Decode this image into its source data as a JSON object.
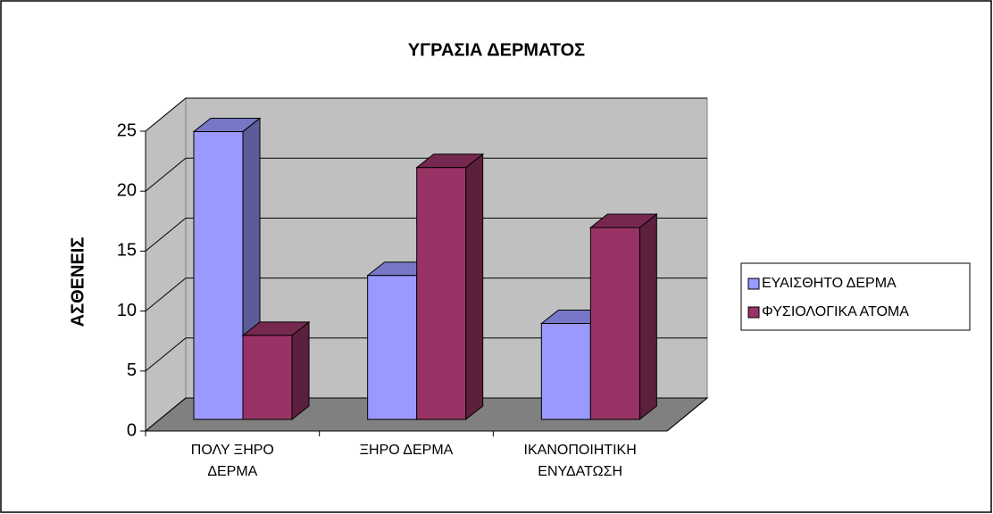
{
  "chart_data": {
    "type": "bar3d",
    "title": "ΥΓΡΑΣΙΑ ΔΕΡΜΑΤΟΣ",
    "y_label": "ΑΣΘΕΝΕΙΣ",
    "categories": [
      "ΠΟΛΥ ΞΗΡΟ ΔΕΡΜΑ",
      "ΞΗΡΟ ΔΕΡΜΑ",
      "ΙΚΑΝΟΠΟΙΗΤΙΚΗ ΕΝΥΔΑΤΩΣΗ"
    ],
    "series": [
      {
        "name": "ΕΥΑΙΣΘΗΤΟ ΔΕΡΜΑ",
        "color": "#9999ff",
        "values": [
          24,
          12,
          8
        ]
      },
      {
        "name": "ΦΥΣΙΟΛΟΓΙΚΑ ΑΤΟΜΑ",
        "color": "#993366",
        "values": [
          7,
          21,
          16
        ]
      }
    ],
    "ylim": [
      0,
      25
    ],
    "yticks": [
      0,
      5,
      10,
      15,
      20,
      25
    ],
    "grid": true,
    "legend": "right"
  }
}
